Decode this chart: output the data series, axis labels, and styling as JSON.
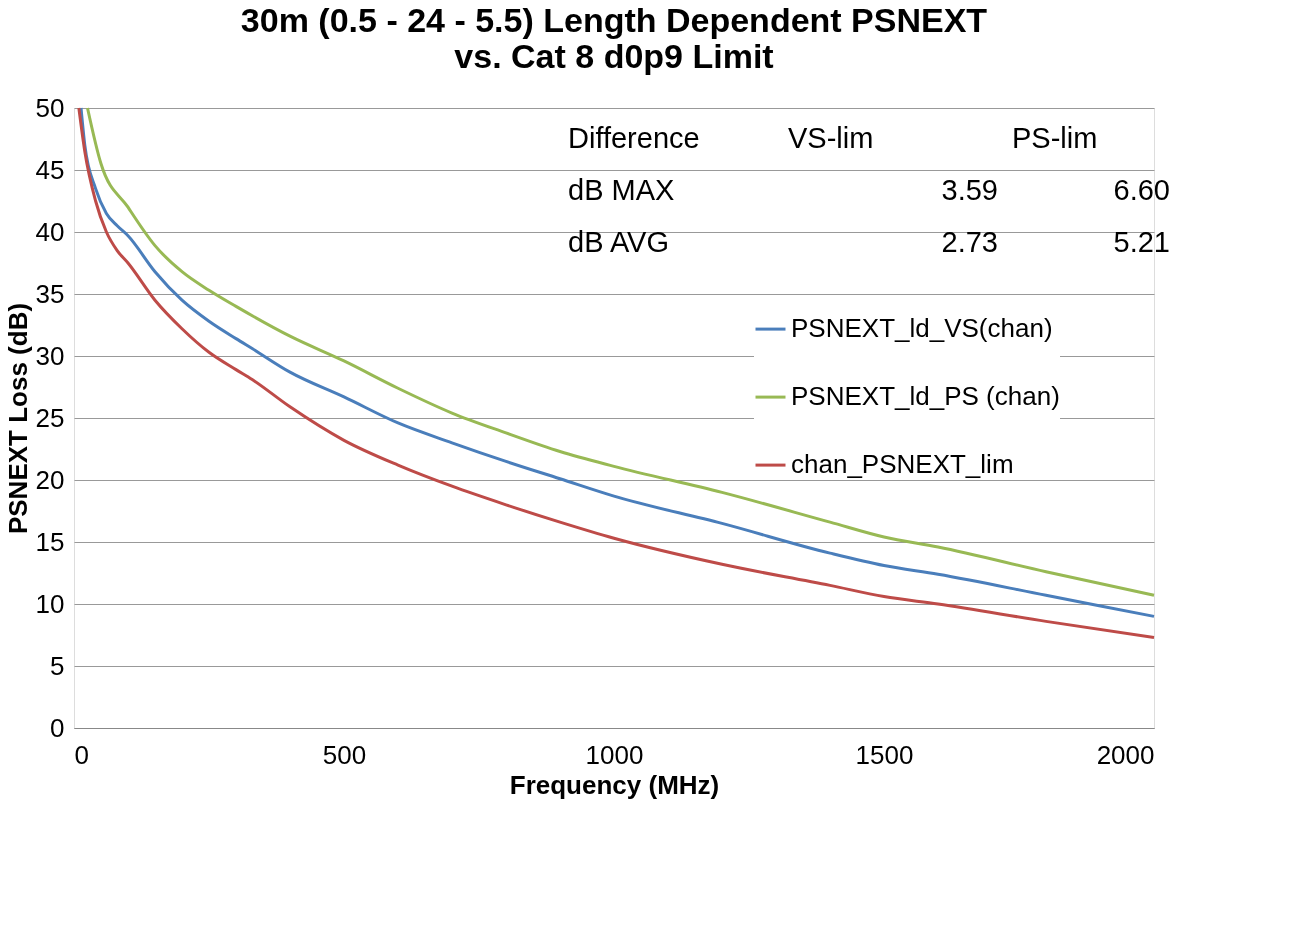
{
  "chart_data": {
    "type": "line",
    "title": [
      "30m (0.5 - 24 - 5.5) Length Dependent PSNEXT",
      "vs. Cat 8 d0p9 Limit"
    ],
    "xlabel": "Frequency (MHz)",
    "ylabel": "PSNEXT Loss (dB)",
    "xlim": [
      0,
      2000
    ],
    "xticks": [
      0,
      500,
      1000,
      1500,
      2000
    ],
    "ylim": [
      0,
      50
    ],
    "yticks": [
      0,
      5,
      10,
      15,
      20,
      25,
      30,
      35,
      40,
      45,
      50
    ],
    "grid": "y",
    "legend": "right",
    "series": [
      {
        "name": "PSNEXT_ld_VS(chan)",
        "color": "#4a7ebb",
        "x": [
          13,
          20,
          40,
          60,
          80,
          100,
          150,
          200,
          250,
          300,
          330,
          400,
          500,
          600,
          700,
          800,
          900,
          1000,
          1200,
          1400,
          1500,
          1600,
          1800,
          2000
        ],
        "values": [
          50,
          47,
          43.5,
          41.5,
          40.5,
          39.7,
          36.8,
          34.5,
          32.8,
          31.4,
          30.6,
          28.7,
          26.7,
          24.6,
          23.0,
          21.5,
          20.1,
          18.7,
          16.5,
          14.1,
          13.1,
          12.4,
          10.7,
          9.0
        ]
      },
      {
        "name": "PSNEXT_ld_PS (chan)",
        "color": "#98b954",
        "x": [
          25,
          50,
          100,
          150,
          200,
          250,
          300,
          400,
          500,
          600,
          700,
          800,
          900,
          1000,
          1200,
          1400,
          1500,
          1600,
          1800,
          2000
        ],
        "values": [
          50,
          45.5,
          42.0,
          38.9,
          36.8,
          35.3,
          34.0,
          31.6,
          29.6,
          27.4,
          25.4,
          23.8,
          22.3,
          21.1,
          19.0,
          16.6,
          15.4,
          14.6,
          12.6,
          10.7
        ]
      },
      {
        "name": "chan_PSNEXT_lim",
        "color": "#be4b48",
        "x": [
          9,
          20,
          40,
          60,
          80,
          100,
          150,
          200,
          250,
          300,
          330,
          400,
          500,
          600,
          700,
          800,
          900,
          1000,
          1200,
          1400,
          1500,
          1600,
          1800,
          2000
        ],
        "values": [
          50,
          46.5,
          42.5,
          40.0,
          38.5,
          37.5,
          34.5,
          32.2,
          30.3,
          28.9,
          28.1,
          25.9,
          23.2,
          21.2,
          19.5,
          18.0,
          16.6,
          15.3,
          13.2,
          11.5,
          10.6,
          10.0,
          8.6,
          7.3
        ]
      }
    ],
    "annotations": [
      "Difference",
      "VS-lim",
      "PS-lim",
      "dB MAX",
      "3.59",
      "6.60",
      "dB AVG",
      "2.73",
      "5.21"
    ]
  }
}
